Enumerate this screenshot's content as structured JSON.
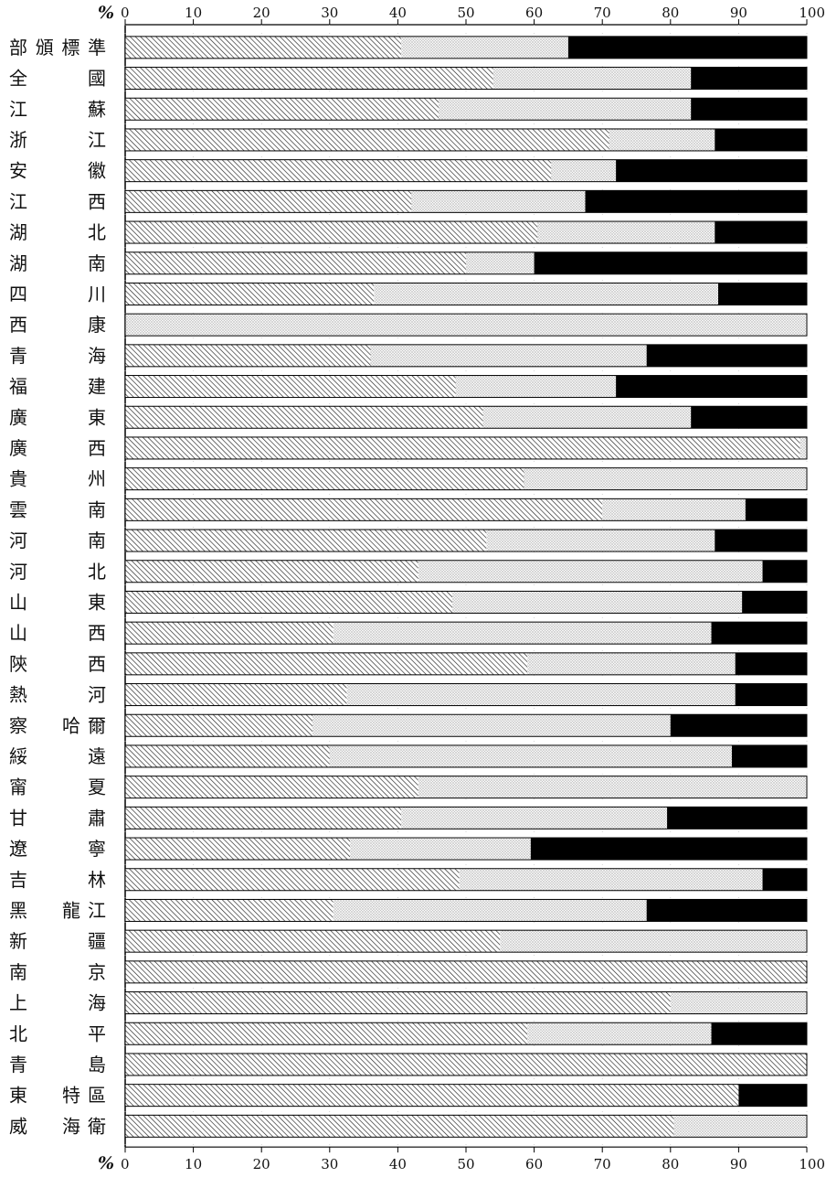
{
  "chart_data": {
    "type": "bar",
    "orientation": "horizontal",
    "stacked": true,
    "percent_symbol": "%",
    "xlim": [
      0,
      100
    ],
    "xticks": [
      0,
      10,
      20,
      30,
      40,
      50,
      60,
      70,
      80,
      90,
      100
    ],
    "grid": true,
    "categories": [
      "部頒標準",
      "全國",
      "江蘇",
      "浙江",
      "安徽",
      "江西",
      "湖北",
      "湖南",
      "四川",
      "西康",
      "青海",
      "福建",
      "廣東",
      "廣西",
      "貴州",
      "雲南",
      "河南",
      "河北",
      "山東",
      "山西",
      "陝西",
      "熱河",
      "察哈爾",
      "綏遠",
      "甯夏",
      "甘肅",
      "遼寧",
      "吉林",
      "黑龍江",
      "新疆",
      "南京",
      "上海",
      "北平",
      "青島",
      "東特區",
      "威海衛"
    ],
    "series": [
      {
        "pattern": "hatched",
        "values": [
          40.5,
          54,
          46,
          71,
          62.5,
          42,
          60.5,
          50,
          36.5,
          0,
          36,
          48.5,
          52.5,
          99,
          58.5,
          70,
          53,
          43,
          48,
          30.5,
          59,
          32.5,
          27.5,
          30,
          43,
          40.5,
          33,
          49,
          30.5,
          55,
          100,
          80,
          59,
          100,
          90,
          80.5
        ]
      },
      {
        "pattern": "dotted",
        "values": [
          24.5,
          29,
          37,
          15.5,
          9.5,
          25.5,
          26,
          10,
          50.5,
          100,
          40.5,
          23.5,
          30.5,
          1,
          41.5,
          21,
          33.5,
          50.5,
          42.5,
          55.5,
          30.5,
          57,
          52.5,
          59,
          57,
          39,
          26.5,
          44.5,
          46,
          45,
          0,
          20,
          27,
          0,
          0,
          19.5
        ]
      },
      {
        "pattern": "solid",
        "values": [
          35,
          17,
          17,
          13.5,
          28,
          32.5,
          13.5,
          40,
          13,
          0,
          23.5,
          28,
          17,
          0,
          0,
          9,
          13.5,
          6.5,
          9.5,
          14,
          10.5,
          10.5,
          20,
          11,
          0,
          20.5,
          40.5,
          6.5,
          23.5,
          0,
          0,
          0,
          14,
          0,
          10,
          0
        ]
      }
    ]
  }
}
